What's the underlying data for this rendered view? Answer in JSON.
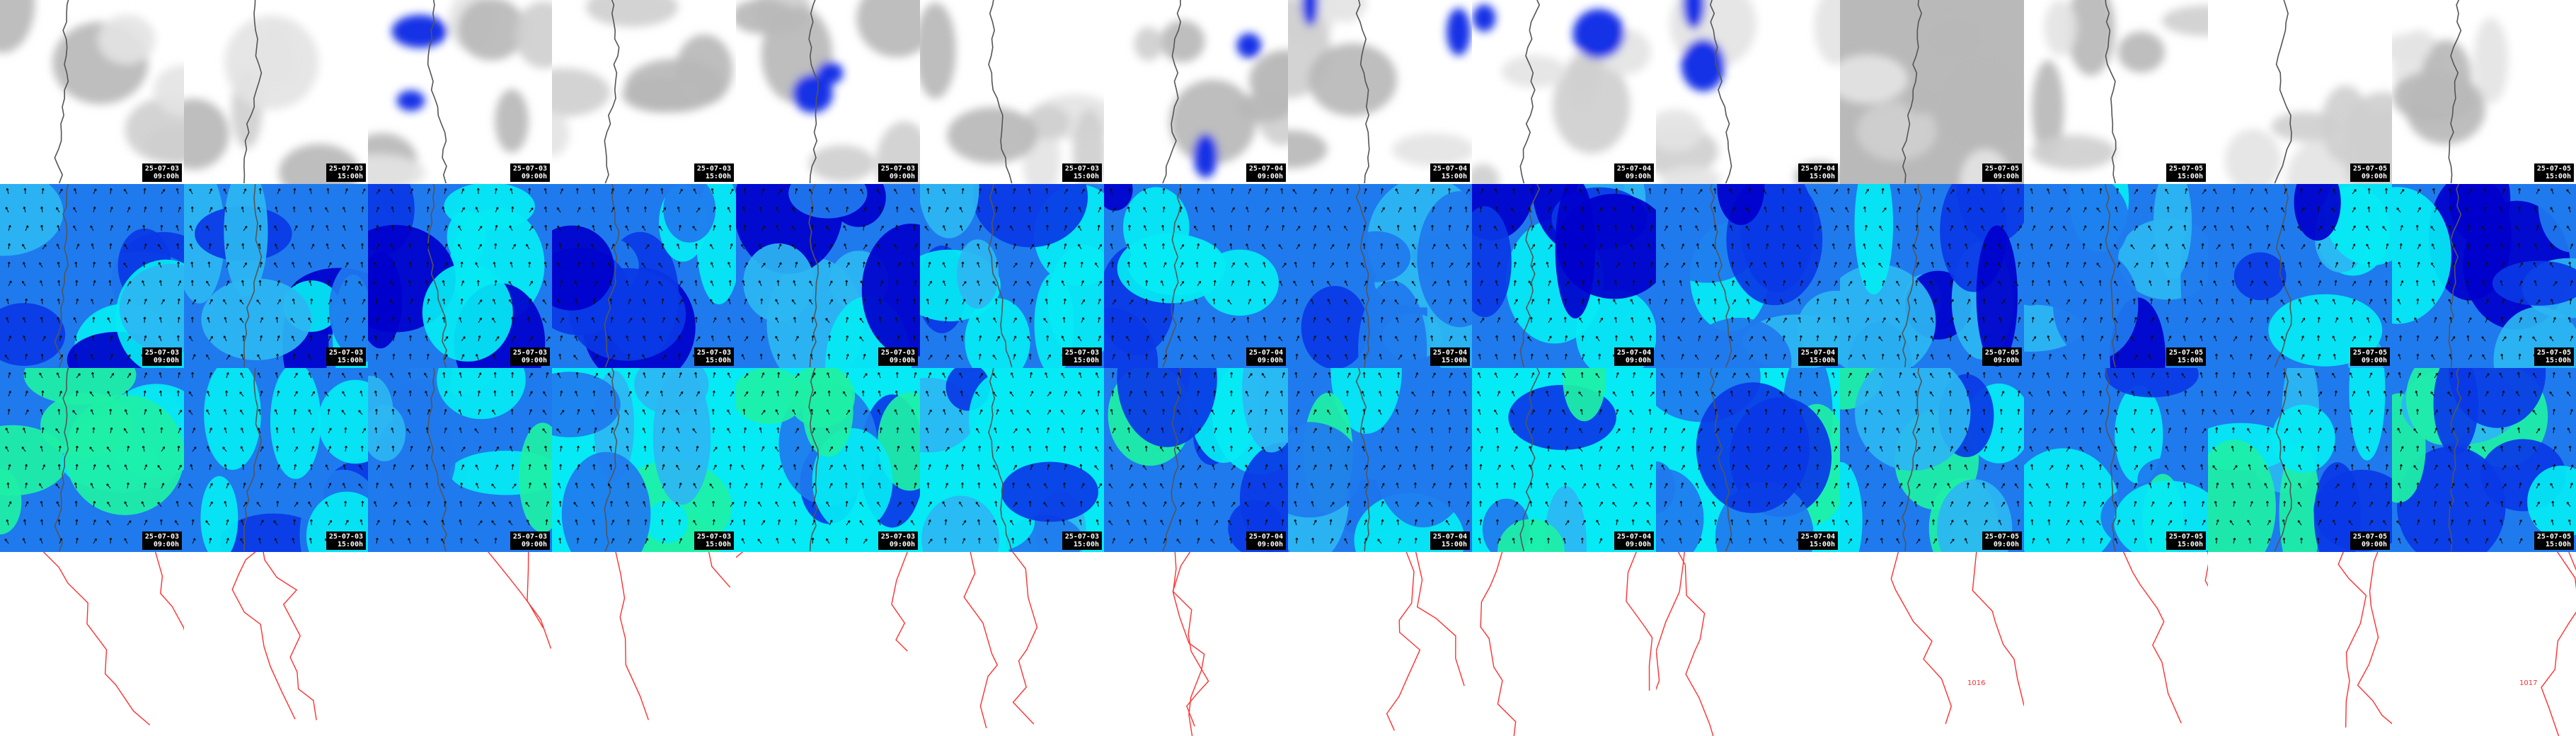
{
  "layout": {
    "columns": 14,
    "rows": 4
  },
  "rows": [
    {
      "field": "cloud",
      "label": "",
      "stamp": true
    },
    {
      "field": "wind",
      "label": "",
      "stamp": true
    },
    {
      "field": "wind",
      "label": "",
      "stamp": true
    },
    {
      "field": "isobar",
      "label": "",
      "stamp": false
    }
  ],
  "timestamps": [
    {
      "date": "25-07-03",
      "time": "09:00h"
    },
    {
      "date": "25-07-03",
      "time": "15:00h"
    },
    {
      "date": "25-07-03",
      "time": "09:00h"
    },
    {
      "date": "25-07-03",
      "time": "15:00h"
    },
    {
      "date": "25-07-03",
      "time": "09:00h"
    },
    {
      "date": "25-07-03",
      "time": "15:00h"
    },
    {
      "date": "25-07-04",
      "time": "09:00h"
    },
    {
      "date": "25-07-04",
      "time": "15:00h"
    },
    {
      "date": "25-07-04",
      "time": "09:00h"
    },
    {
      "date": "25-07-04",
      "time": "15:00h"
    },
    {
      "date": "25-07-05",
      "time": "09:00h"
    },
    {
      "date": "25-07-05",
      "time": "15:00h"
    },
    {
      "date": "25-07-05",
      "time": "09:00h"
    },
    {
      "date": "25-07-05",
      "time": "15:00h"
    }
  ],
  "isobar_labels": [
    {
      "col": 10,
      "text": "1016"
    },
    {
      "col": 13,
      "text": "1017"
    }
  ],
  "colors": {
    "cloud_dark": "#b9b9b9",
    "cloud_light": "#e4e4e4",
    "rain": "#1530e6",
    "rain_core": "#2ec8b0",
    "wind_darkest": "#0000cc",
    "wind_dark": "#0a38e6",
    "wind_mid": "#1f7aee",
    "wind_light": "#2cb6f2",
    "wind_cyan": "#05eaf4",
    "wind_green": "#1ef0a6",
    "coast": "#555555",
    "arrow": "#111111",
    "isobar": "#ff3030"
  }
}
